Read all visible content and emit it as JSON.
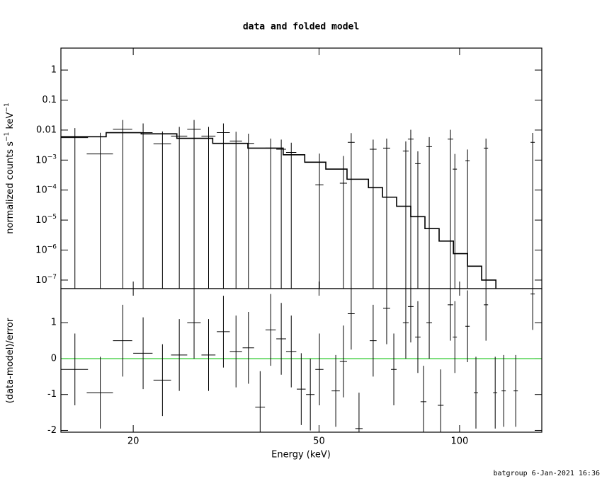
{
  "chart_data": [
    {
      "type": "errorbar",
      "title": "data and folded model",
      "ylabel": [
        {
          "text": "normalized counts s"
        },
        {
          "text": "−1",
          "sup": true
        },
        {
          "text": " keV"
        },
        {
          "text": "−1",
          "sup": true
        }
      ],
      "xlog": true,
      "ylog": true,
      "xlim": [
        14,
        150
      ],
      "ylim": [
        5.2e-08,
        5.4
      ],
      "yticks": [
        1,
        0.1,
        0.01,
        {
          "value": 0.001,
          "label": "10",
          "exponent": "−3"
        },
        {
          "value": 0.0001,
          "label": "10",
          "exponent": "−4"
        },
        {
          "value": 1e-05,
          "label": "10",
          "exponent": "−5"
        },
        {
          "value": 1e-06,
          "label": "10",
          "exponent": "−6"
        },
        {
          "value": 1e-07,
          "label": "10",
          "exponent": "−7"
        }
      ],
      "series": [
        {
          "color": "#000000",
          "x": [
            15.0,
            17.0,
            19.0,
            21.0,
            23.1,
            25.1,
            27.0,
            29.0,
            31.2,
            33.2,
            35.3,
            37.4,
            39.4,
            41.5,
            43.6,
            45.8,
            47.9,
            50.1,
            54.3,
            56.4,
            58.6,
            60.9,
            65.3,
            69.8,
            72.3,
            76.7,
            78.6,
            81.4,
            83.7,
            86.1,
            91.1,
            95.6,
            97.7,
            104.0,
            108.4,
            113.9,
            119.2,
            124.3,
            131.9,
            143.4
          ],
          "xerr": [
            1.0,
            1.1,
            0.9,
            1.0,
            1.0,
            1.0,
            0.9,
            1.0,
            1.0,
            1.0,
            1.0,
            0.9,
            1.0,
            1.0,
            1.1,
            1.0,
            1.0,
            1.0,
            1.1,
            1.0,
            1.0,
            1.1,
            1.1,
            1.2,
            1.0,
            1.1,
            1.1,
            1.1,
            1.2,
            1.2,
            1.3,
            1.3,
            1.0,
            1.1,
            1.1,
            1.2,
            1.2,
            1.3,
            1.4,
            1.5
          ],
          "values": [
            0.0056,
            0.0016,
            0.0107,
            0.0082,
            0.0035,
            0.0063,
            0.0107,
            0.0063,
            0.0082,
            0.0043,
            0.0036,
            null,
            0.0025,
            0.0023,
            0.0018,
            null,
            null,
            0.00015,
            null,
            0.00017,
            0.0039,
            null,
            0.0023,
            0.0025,
            null,
            0.002,
            0.005,
            0.00076,
            null,
            0.0028,
            null,
            0.005,
            0.0005,
            0.00095,
            null,
            0.0025,
            null,
            null,
            null,
            0.0039
          ],
          "yerr": [
            0.006,
            0.0065,
            0.011,
            0.0085,
            0.0055,
            0.0065,
            0.011,
            0.0065,
            0.0085,
            0.0045,
            0.004,
            null,
            0.0027,
            0.0025,
            0.002,
            null,
            null,
            0.0015,
            null,
            0.0012,
            0.004,
            null,
            0.0025,
            0.0027,
            null,
            0.0022,
            0.0052,
            0.0012,
            null,
            0.003,
            null,
            0.0052,
            0.0011,
            0.0013,
            null,
            0.0027,
            null,
            null,
            null,
            0.0041
          ]
        }
      ],
      "model": {
        "color": "#000000",
        "bins": [
          14.0,
          17.5,
          20.8,
          24.8,
          29.6,
          35.2,
          41.9,
          46.6,
          51.7,
          57.4,
          63.8,
          68.4,
          73.3,
          78.6,
          84.3,
          90.4,
          97.0,
          104.0,
          111.5,
          119.6
        ],
        "values": [
          0.006,
          0.0082,
          0.0075,
          0.0053,
          0.0036,
          0.0025,
          0.0015,
          0.00085,
          0.0005,
          0.00023,
          0.00012,
          5.8e-05,
          2.9e-05,
          1.3e-05,
          5.2e-06,
          2e-06,
          7.6e-07,
          2.9e-07,
          1e-07
        ]
      }
    },
    {
      "type": "errorbar",
      "xlabel": "Energy (keV)",
      "ylabel": [
        {
          "text": "(data-model)/error"
        }
      ],
      "xlog": true,
      "ylog": false,
      "xlim": [
        14,
        150
      ],
      "ylim": [
        -2.05,
        1.95
      ],
      "xticks": [
        20,
        50,
        100
      ],
      "yticks": [
        -2,
        -1,
        0,
        1
      ],
      "hline": {
        "value": 0,
        "color": "#33cc33"
      },
      "series": [
        {
          "color": "#000000",
          "x": [
            15.0,
            17.0,
            19.0,
            21.0,
            23.1,
            25.1,
            27.0,
            29.0,
            31.2,
            33.2,
            35.3,
            37.4,
            39.4,
            41.5,
            43.6,
            45.8,
            47.9,
            50.1,
            54.3,
            56.4,
            58.6,
            60.9,
            65.3,
            69.8,
            72.3,
            76.7,
            78.6,
            81.4,
            83.7,
            86.1,
            91.1,
            95.6,
            97.7,
            104.0,
            108.4,
            113.9,
            119.2,
            124.3,
            131.9,
            143.4
          ],
          "xerr": [
            1.0,
            1.1,
            0.9,
            1.0,
            1.0,
            1.0,
            0.9,
            1.0,
            1.0,
            1.0,
            1.0,
            0.9,
            1.0,
            1.0,
            1.1,
            1.0,
            1.0,
            1.0,
            1.1,
            1.0,
            1.0,
            1.1,
            1.1,
            1.2,
            1.0,
            1.1,
            1.1,
            1.1,
            1.2,
            1.2,
            1.3,
            1.3,
            1.0,
            1.1,
            1.1,
            1.2,
            1.2,
            1.3,
            1.4,
            1.5
          ],
          "values": [
            -0.3,
            -0.95,
            0.5,
            0.15,
            -0.6,
            0.1,
            1.0,
            0.1,
            0.75,
            0.2,
            0.3,
            -1.35,
            0.8,
            0.55,
            0.2,
            -0.85,
            -1.0,
            -0.3,
            -0.9,
            -0.08,
            1.25,
            -1.95,
            0.5,
            1.4,
            -0.3,
            1.0,
            1.45,
            0.6,
            -1.2,
            1.0,
            -1.3,
            1.5,
            0.6,
            0.9,
            -0.95,
            1.5,
            -0.95,
            -0.9,
            -0.9,
            1.8
          ],
          "yerr": [
            1,
            1,
            1,
            1,
            1,
            1,
            1,
            1,
            1,
            1,
            1,
            1,
            1,
            1,
            1,
            1,
            1,
            1,
            1,
            1,
            1,
            1,
            1,
            1,
            1,
            1,
            1,
            1,
            1,
            1,
            1,
            1,
            1,
            1,
            1,
            1,
            1,
            1,
            1,
            1
          ]
        }
      ]
    }
  ],
  "footer": "batgroup  6-Jan-2021 16:36"
}
